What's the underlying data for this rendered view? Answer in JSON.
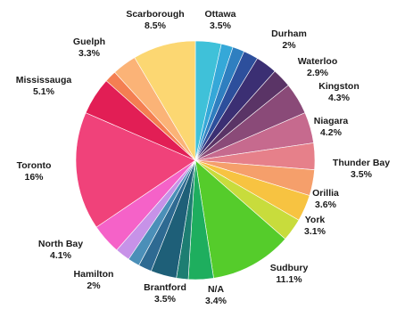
{
  "chart_data": {
    "type": "pie",
    "title": "",
    "slices": [
      {
        "label": "Ottawa",
        "value_label": "3.5%",
        "value": 3.5,
        "color": "#3fc1d9"
      },
      {
        "label": "",
        "value_label": "",
        "value": 1.6,
        "color": "#35a8d8"
      },
      {
        "label": "",
        "value_label": "",
        "value": 1.6,
        "color": "#2f7fc0"
      },
      {
        "label": "Durham",
        "value_label": "2%",
        "value": 2.0,
        "color": "#2d4f9c"
      },
      {
        "label": "Waterloo",
        "value_label": "2.9%",
        "value": 2.9,
        "color": "#3b2f73"
      },
      {
        "label": "",
        "value_label": "",
        "value": 2.6,
        "color": "#5a3466"
      },
      {
        "label": "Kingston",
        "value_label": "4.3%",
        "value": 4.3,
        "color": "#8a4a78"
      },
      {
        "label": "Niagara",
        "value_label": "4.2%",
        "value": 4.2,
        "color": "#c66a8e"
      },
      {
        "label": "",
        "value_label": "",
        "value": 3.6,
        "color": "#e6808a"
      },
      {
        "label": "Thunder Bay",
        "value_label": "3.5%",
        "value": 3.5,
        "color": "#f59f6b"
      },
      {
        "label": "Orillia",
        "value_label": "3.6%",
        "value": 3.6,
        "color": "#f7c341"
      },
      {
        "label": "York",
        "value_label": "3.1%",
        "value": 3.1,
        "color": "#c8dc3c"
      },
      {
        "label": "Sudbury",
        "value_label": "11.1%",
        "value": 11.1,
        "color": "#55cc2b"
      },
      {
        "label": "N/A",
        "value_label": "3.4%",
        "value": 3.4,
        "color": "#1eae5e"
      },
      {
        "label": "",
        "value_label": "",
        "value": 1.6,
        "color": "#1d7e72"
      },
      {
        "label": "Brantford",
        "value_label": "3.5%",
        "value": 3.5,
        "color": "#1e5f78"
      },
      {
        "label": "",
        "value_label": "",
        "value": 1.8,
        "color": "#2e6a92"
      },
      {
        "label": "",
        "value_label": "",
        "value": 1.6,
        "color": "#4b8fb8"
      },
      {
        "label": "Hamilton",
        "value_label": "2%",
        "value": 2.0,
        "color": "#c792e8"
      },
      {
        "label": "North Bay",
        "value_label": "4.1%",
        "value": 4.1,
        "color": "#f562c8"
      },
      {
        "label": "Toronto",
        "value_label": "16%",
        "value": 16.0,
        "color": "#f0427a"
      },
      {
        "label": "Mississauga",
        "value_label": "5.1%",
        "value": 5.1,
        "color": "#e21e55"
      },
      {
        "label": "",
        "value_label": "",
        "value": 1.6,
        "color": "#f47f52"
      },
      {
        "label": "Guelph",
        "value_label": "3.3%",
        "value": 3.3,
        "color": "#fbb377"
      },
      {
        "label": "Scarborough",
        "value_label": "8.5%",
        "value": 8.5,
        "color": "#fcd772"
      }
    ]
  }
}
